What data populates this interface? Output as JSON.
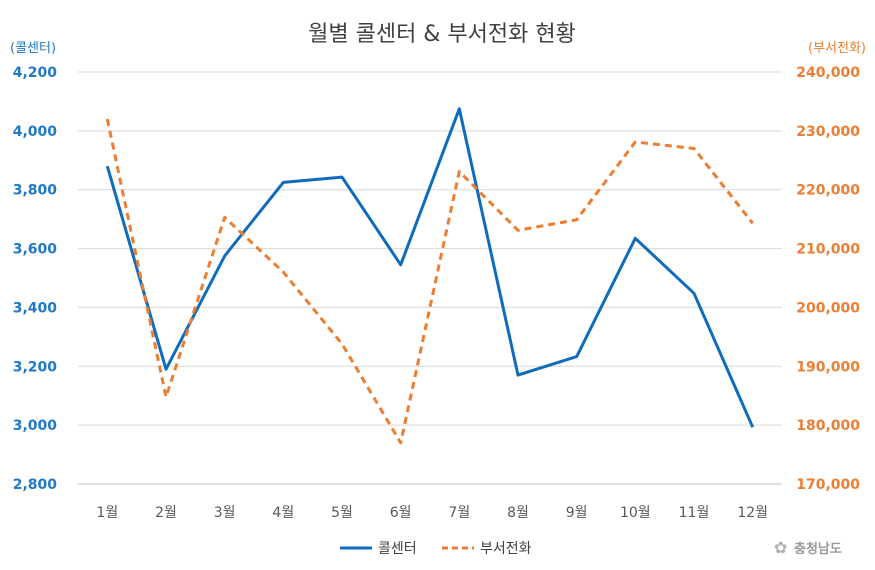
{
  "chart_data": {
    "type": "line",
    "title": "월별 콜센터 & 부서전화 현황",
    "categories": [
      "1월",
      "2월",
      "3월",
      "4월",
      "5월",
      "6월",
      "7월",
      "8월",
      "9월",
      "10월",
      "11월",
      "12월"
    ],
    "series": [
      {
        "name": "콜센터",
        "axis": "left",
        "style": "solid",
        "color": "#0f6cbd",
        "values": [
          3880,
          3190,
          3575,
          3825,
          3843,
          3545,
          4075,
          3170,
          3233,
          3635,
          3448,
          2993
        ]
      },
      {
        "name": "부서전화",
        "axis": "right",
        "style": "dashed",
        "color": "#ed7d31",
        "values": [
          232000,
          184800,
          215300,
          206000,
          193800,
          177000,
          223100,
          213100,
          214900,
          228100,
          227000,
          214300
        ]
      }
    ],
    "left_axis": {
      "label": "(콜센터)",
      "range": [
        2800,
        4200
      ],
      "ticks": [
        "2,800",
        "3,000",
        "3,200",
        "3,400",
        "3,600",
        "3,800",
        "4,000",
        "4,200"
      ],
      "color": "#1f78c8"
    },
    "right_axis": {
      "label": "(부서전화)",
      "range": [
        170000,
        240000
      ],
      "ticks": [
        "170,000",
        "180,000",
        "190,000",
        "200,000",
        "210,000",
        "220,000",
        "230,000",
        "240,000"
      ],
      "color": "#ed7d31"
    },
    "grid": true,
    "legend_position": "bottom"
  },
  "watermark": "충청남도"
}
